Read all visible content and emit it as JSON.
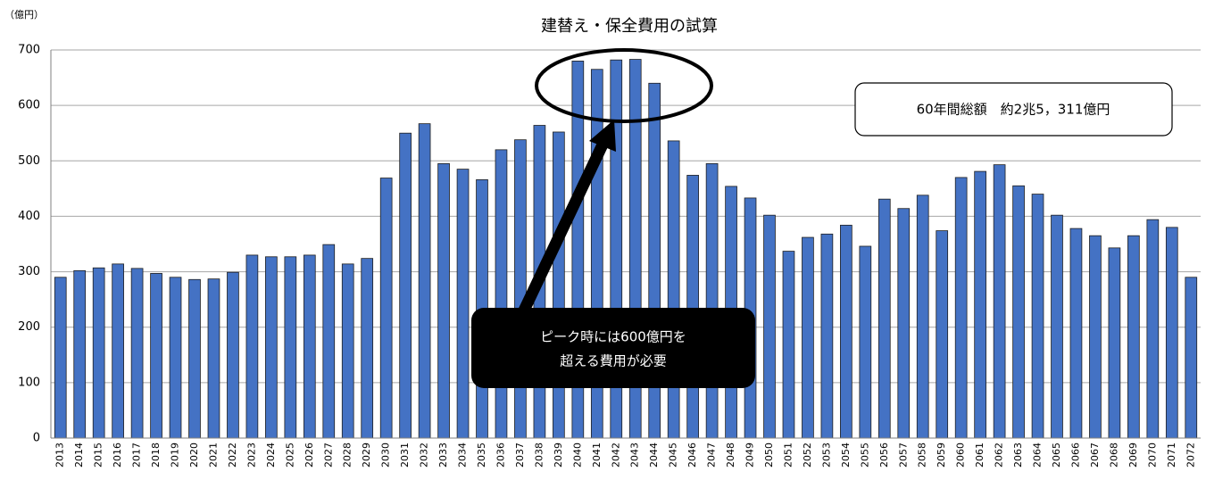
{
  "chart_data": {
    "type": "bar",
    "title": "建替え・保全費用の試算",
    "y_unit_label": "（億円）",
    "categories": [
      "2013",
      "2014",
      "2015",
      "2016",
      "2017",
      "2018",
      "2019",
      "2020",
      "2021",
      "2022",
      "2023",
      "2024",
      "2025",
      "2026",
      "2027",
      "2028",
      "2029",
      "2030",
      "2031",
      "2032",
      "2033",
      "2034",
      "2035",
      "2036",
      "2037",
      "2038",
      "2039",
      "2040",
      "2041",
      "2042",
      "2043",
      "2044",
      "2045",
      "2046",
      "2047",
      "2048",
      "2049",
      "2050",
      "2051",
      "2052",
      "2053",
      "2054",
      "2055",
      "2056",
      "2057",
      "2058",
      "2059",
      "2060",
      "2061",
      "2062",
      "2063",
      "2064",
      "2065",
      "2066",
      "2067",
      "2068",
      "2069",
      "2070",
      "2071",
      "2072"
    ],
    "values": [
      290,
      302,
      307,
      314,
      306,
      297,
      290,
      286,
      287,
      299,
      330,
      327,
      327,
      330,
      349,
      314,
      324,
      469,
      550,
      567,
      495,
      485,
      466,
      520,
      538,
      564,
      552,
      680,
      665,
      682,
      683,
      640,
      536,
      474,
      495,
      454,
      433,
      402,
      337,
      362,
      368,
      384,
      346,
      431,
      414,
      438,
      374,
      470,
      481,
      493,
      455,
      440,
      402,
      378,
      365,
      343,
      365,
      394,
      380,
      290
    ],
    "color": "#4472c4",
    "ylim": [
      0,
      700
    ],
    "yticks": [
      0,
      100,
      200,
      300,
      400,
      500,
      600,
      700
    ],
    "grid": true,
    "annotations": {
      "total": "60年間総額　約2兆5，311億円",
      "callout": [
        "ピーク時には600億円を",
        "超える費用が必要"
      ]
    }
  }
}
